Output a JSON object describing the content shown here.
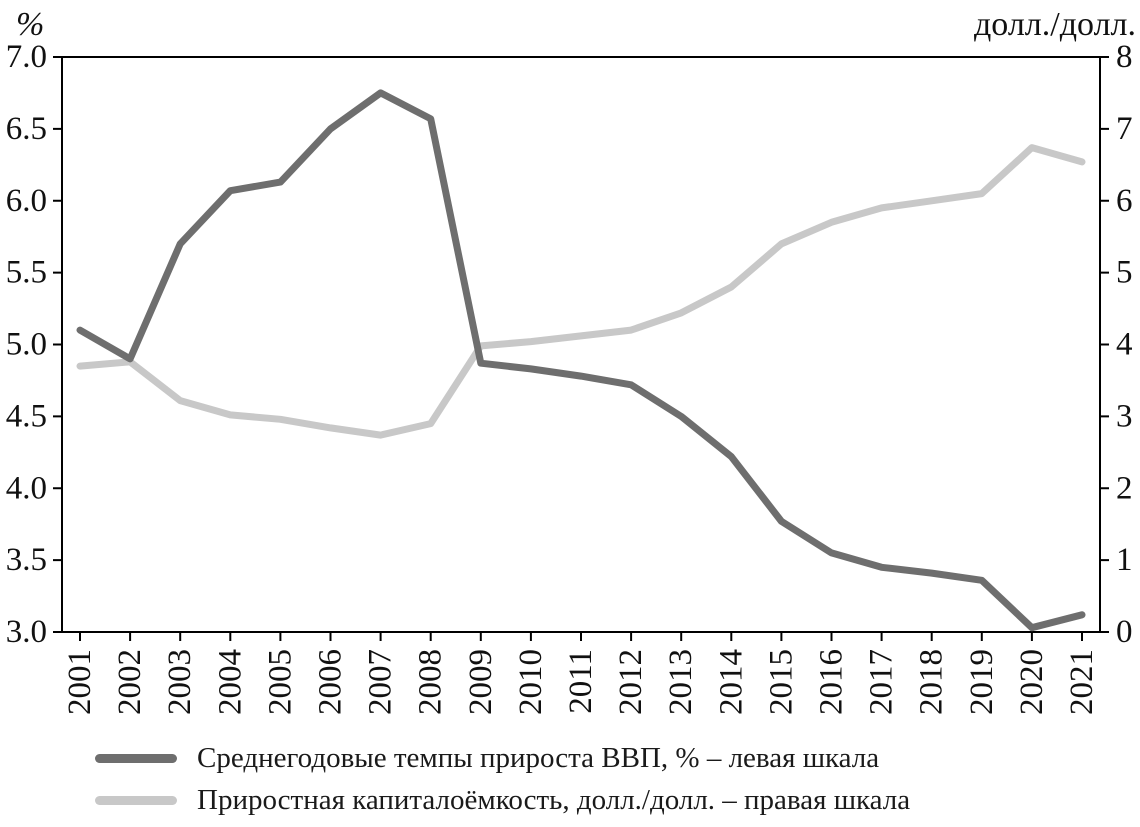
{
  "chart_data": {
    "type": "line",
    "title": "",
    "grid": false,
    "legend_position": "bottom",
    "x": [
      2001,
      2002,
      2003,
      2004,
      2005,
      2006,
      2007,
      2008,
      2009,
      2010,
      2011,
      2012,
      2013,
      2014,
      2015,
      2016,
      2017,
      2018,
      2019,
      2020,
      2021
    ],
    "left_axis": {
      "label": "%",
      "min": 3.0,
      "max": 7.0,
      "ticks": [
        "3.0",
        "3.5",
        "4.0",
        "4.5",
        "5.0",
        "5.5",
        "6.0",
        "6.5",
        "7.0"
      ]
    },
    "right_axis": {
      "label": "долл./долл.",
      "min": 0,
      "max": 8,
      "ticks": [
        "0",
        "1",
        "2",
        "3",
        "4",
        "5",
        "6",
        "7",
        "8"
      ]
    },
    "series": [
      {
        "name": "Среднегодовые темпы прироста ВВП, % – левая шкала",
        "axis": "left",
        "color": "#6e6e6e",
        "values": [
          5.1,
          4.9,
          5.7,
          6.07,
          6.13,
          6.5,
          6.75,
          6.57,
          4.87,
          4.83,
          4.78,
          4.72,
          4.5,
          4.22,
          3.77,
          3.55,
          3.45,
          3.41,
          3.36,
          3.03,
          3.12
        ]
      },
      {
        "name": "Приростная капиталоёмкость, долл./долл. – правая шкала",
        "axis": "right",
        "color": "#c8c8c8",
        "values": [
          3.7,
          3.76,
          3.22,
          3.02,
          2.96,
          2.84,
          2.74,
          2.9,
          3.98,
          4.04,
          4.12,
          4.2,
          4.44,
          4.8,
          5.4,
          5.7,
          5.9,
          6.0,
          6.1,
          6.74,
          6.54
        ]
      }
    ],
    "style": {
      "axis_color": "#000000",
      "tick_font_px": 33,
      "series_stroke_px": 7
    }
  }
}
